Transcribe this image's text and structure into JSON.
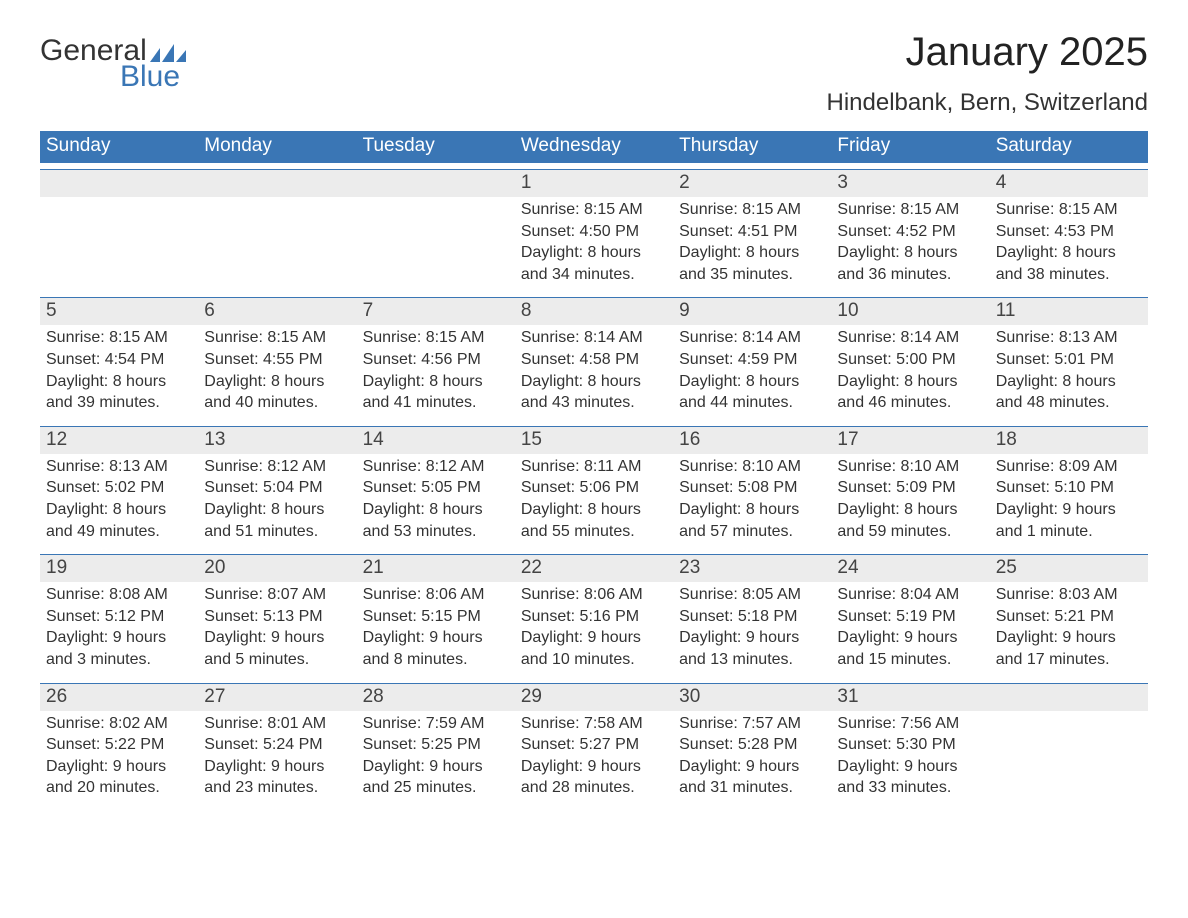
{
  "logo": {
    "general": "General",
    "blue": "Blue",
    "flag_color": "#3a76b5"
  },
  "title": "January 2025",
  "location": "Hindelbank, Bern, Switzerland",
  "header_bg": "#3a76b5",
  "daynum_bg": "#ececec",
  "weekdays": [
    "Sunday",
    "Monday",
    "Tuesday",
    "Wednesday",
    "Thursday",
    "Friday",
    "Saturday"
  ],
  "weeks": [
    [
      {
        "n": "",
        "sunrise": "",
        "sunset": "",
        "daylight1": "",
        "daylight2": ""
      },
      {
        "n": "",
        "sunrise": "",
        "sunset": "",
        "daylight1": "",
        "daylight2": ""
      },
      {
        "n": "",
        "sunrise": "",
        "sunset": "",
        "daylight1": "",
        "daylight2": ""
      },
      {
        "n": "1",
        "sunrise": "Sunrise: 8:15 AM",
        "sunset": "Sunset: 4:50 PM",
        "daylight1": "Daylight: 8 hours",
        "daylight2": "and 34 minutes."
      },
      {
        "n": "2",
        "sunrise": "Sunrise: 8:15 AM",
        "sunset": "Sunset: 4:51 PM",
        "daylight1": "Daylight: 8 hours",
        "daylight2": "and 35 minutes."
      },
      {
        "n": "3",
        "sunrise": "Sunrise: 8:15 AM",
        "sunset": "Sunset: 4:52 PM",
        "daylight1": "Daylight: 8 hours",
        "daylight2": "and 36 minutes."
      },
      {
        "n": "4",
        "sunrise": "Sunrise: 8:15 AM",
        "sunset": "Sunset: 4:53 PM",
        "daylight1": "Daylight: 8 hours",
        "daylight2": "and 38 minutes."
      }
    ],
    [
      {
        "n": "5",
        "sunrise": "Sunrise: 8:15 AM",
        "sunset": "Sunset: 4:54 PM",
        "daylight1": "Daylight: 8 hours",
        "daylight2": "and 39 minutes."
      },
      {
        "n": "6",
        "sunrise": "Sunrise: 8:15 AM",
        "sunset": "Sunset: 4:55 PM",
        "daylight1": "Daylight: 8 hours",
        "daylight2": "and 40 minutes."
      },
      {
        "n": "7",
        "sunrise": "Sunrise: 8:15 AM",
        "sunset": "Sunset: 4:56 PM",
        "daylight1": "Daylight: 8 hours",
        "daylight2": "and 41 minutes."
      },
      {
        "n": "8",
        "sunrise": "Sunrise: 8:14 AM",
        "sunset": "Sunset: 4:58 PM",
        "daylight1": "Daylight: 8 hours",
        "daylight2": "and 43 minutes."
      },
      {
        "n": "9",
        "sunrise": "Sunrise: 8:14 AM",
        "sunset": "Sunset: 4:59 PM",
        "daylight1": "Daylight: 8 hours",
        "daylight2": "and 44 minutes."
      },
      {
        "n": "10",
        "sunrise": "Sunrise: 8:14 AM",
        "sunset": "Sunset: 5:00 PM",
        "daylight1": "Daylight: 8 hours",
        "daylight2": "and 46 minutes."
      },
      {
        "n": "11",
        "sunrise": "Sunrise: 8:13 AM",
        "sunset": "Sunset: 5:01 PM",
        "daylight1": "Daylight: 8 hours",
        "daylight2": "and 48 minutes."
      }
    ],
    [
      {
        "n": "12",
        "sunrise": "Sunrise: 8:13 AM",
        "sunset": "Sunset: 5:02 PM",
        "daylight1": "Daylight: 8 hours",
        "daylight2": "and 49 minutes."
      },
      {
        "n": "13",
        "sunrise": "Sunrise: 8:12 AM",
        "sunset": "Sunset: 5:04 PM",
        "daylight1": "Daylight: 8 hours",
        "daylight2": "and 51 minutes."
      },
      {
        "n": "14",
        "sunrise": "Sunrise: 8:12 AM",
        "sunset": "Sunset: 5:05 PM",
        "daylight1": "Daylight: 8 hours",
        "daylight2": "and 53 minutes."
      },
      {
        "n": "15",
        "sunrise": "Sunrise: 8:11 AM",
        "sunset": "Sunset: 5:06 PM",
        "daylight1": "Daylight: 8 hours",
        "daylight2": "and 55 minutes."
      },
      {
        "n": "16",
        "sunrise": "Sunrise: 8:10 AM",
        "sunset": "Sunset: 5:08 PM",
        "daylight1": "Daylight: 8 hours",
        "daylight2": "and 57 minutes."
      },
      {
        "n": "17",
        "sunrise": "Sunrise: 8:10 AM",
        "sunset": "Sunset: 5:09 PM",
        "daylight1": "Daylight: 8 hours",
        "daylight2": "and 59 minutes."
      },
      {
        "n": "18",
        "sunrise": "Sunrise: 8:09 AM",
        "sunset": "Sunset: 5:10 PM",
        "daylight1": "Daylight: 9 hours",
        "daylight2": "and 1 minute."
      }
    ],
    [
      {
        "n": "19",
        "sunrise": "Sunrise: 8:08 AM",
        "sunset": "Sunset: 5:12 PM",
        "daylight1": "Daylight: 9 hours",
        "daylight2": "and 3 minutes."
      },
      {
        "n": "20",
        "sunrise": "Sunrise: 8:07 AM",
        "sunset": "Sunset: 5:13 PM",
        "daylight1": "Daylight: 9 hours",
        "daylight2": "and 5 minutes."
      },
      {
        "n": "21",
        "sunrise": "Sunrise: 8:06 AM",
        "sunset": "Sunset: 5:15 PM",
        "daylight1": "Daylight: 9 hours",
        "daylight2": "and 8 minutes."
      },
      {
        "n": "22",
        "sunrise": "Sunrise: 8:06 AM",
        "sunset": "Sunset: 5:16 PM",
        "daylight1": "Daylight: 9 hours",
        "daylight2": "and 10 minutes."
      },
      {
        "n": "23",
        "sunrise": "Sunrise: 8:05 AM",
        "sunset": "Sunset: 5:18 PM",
        "daylight1": "Daylight: 9 hours",
        "daylight2": "and 13 minutes."
      },
      {
        "n": "24",
        "sunrise": "Sunrise: 8:04 AM",
        "sunset": "Sunset: 5:19 PM",
        "daylight1": "Daylight: 9 hours",
        "daylight2": "and 15 minutes."
      },
      {
        "n": "25",
        "sunrise": "Sunrise: 8:03 AM",
        "sunset": "Sunset: 5:21 PM",
        "daylight1": "Daylight: 9 hours",
        "daylight2": "and 17 minutes."
      }
    ],
    [
      {
        "n": "26",
        "sunrise": "Sunrise: 8:02 AM",
        "sunset": "Sunset: 5:22 PM",
        "daylight1": "Daylight: 9 hours",
        "daylight2": "and 20 minutes."
      },
      {
        "n": "27",
        "sunrise": "Sunrise: 8:01 AM",
        "sunset": "Sunset: 5:24 PM",
        "daylight1": "Daylight: 9 hours",
        "daylight2": "and 23 minutes."
      },
      {
        "n": "28",
        "sunrise": "Sunrise: 7:59 AM",
        "sunset": "Sunset: 5:25 PM",
        "daylight1": "Daylight: 9 hours",
        "daylight2": "and 25 minutes."
      },
      {
        "n": "29",
        "sunrise": "Sunrise: 7:58 AM",
        "sunset": "Sunset: 5:27 PM",
        "daylight1": "Daylight: 9 hours",
        "daylight2": "and 28 minutes."
      },
      {
        "n": "30",
        "sunrise": "Sunrise: 7:57 AM",
        "sunset": "Sunset: 5:28 PM",
        "daylight1": "Daylight: 9 hours",
        "daylight2": "and 31 minutes."
      },
      {
        "n": "31",
        "sunrise": "Sunrise: 7:56 AM",
        "sunset": "Sunset: 5:30 PM",
        "daylight1": "Daylight: 9 hours",
        "daylight2": "and 33 minutes."
      },
      {
        "n": "",
        "sunrise": "",
        "sunset": "",
        "daylight1": "",
        "daylight2": ""
      }
    ]
  ]
}
